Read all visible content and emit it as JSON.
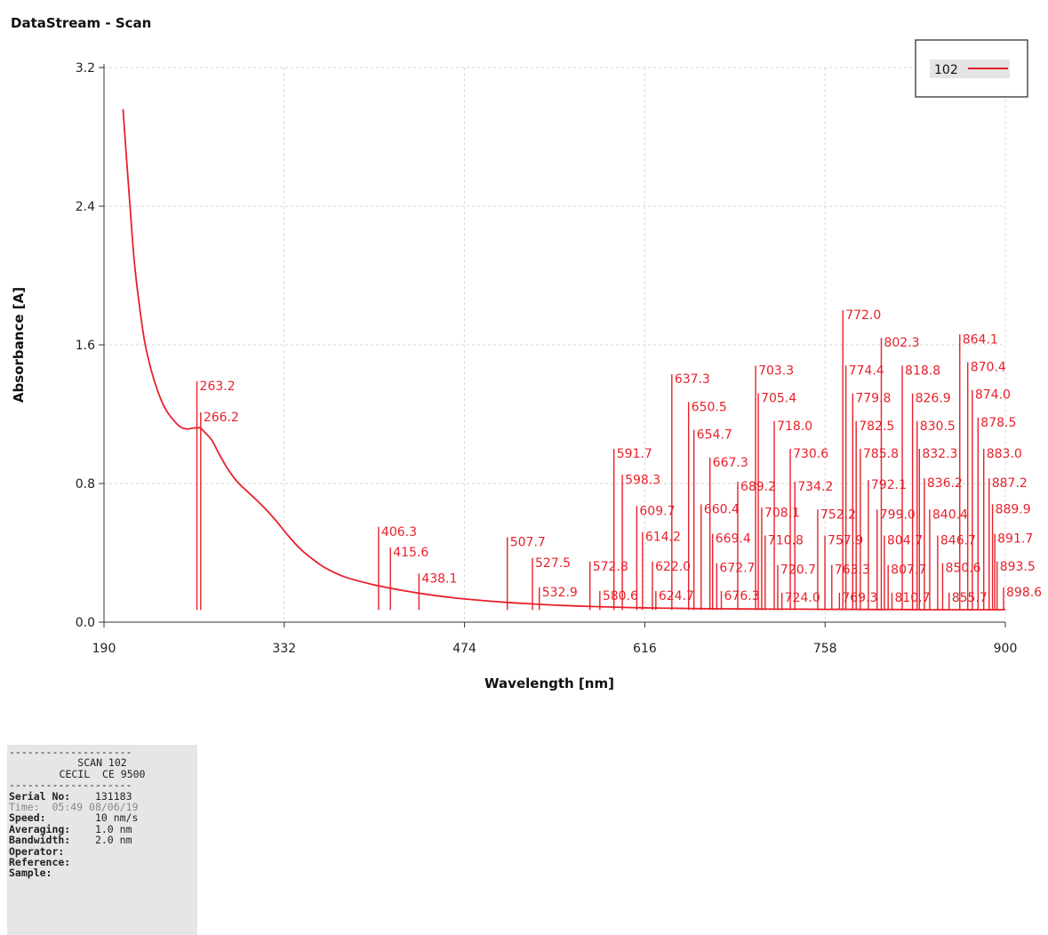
{
  "window": {
    "title": "DataStream - Scan"
  },
  "chart_data": {
    "type": "line",
    "title": "",
    "xlabel": "Wavelength [nm]",
    "ylabel": "Absorbance [A]",
    "xlim": [
      190,
      900
    ],
    "ylim": [
      0.0,
      3.2
    ],
    "xticks": [
      190,
      332,
      474,
      616,
      758,
      900
    ],
    "yticks": [
      0.0,
      0.8,
      1.6,
      2.4,
      3.2
    ],
    "ytick_labels": [
      "0.0",
      "0.8",
      "1.6",
      "2.4",
      "3.2"
    ],
    "grid": true,
    "legend": {
      "position": "top-right",
      "entries": [
        "102"
      ]
    },
    "series": [
      {
        "name": "102",
        "color": "#e8202a",
        "x": [
          205,
          208,
          211,
          214,
          218,
          222,
          227,
          232,
          237,
          242,
          248,
          252,
          255,
          257,
          260,
          263,
          266,
          270,
          275,
          280,
          287,
          295,
          305,
          315,
          325,
          335,
          345,
          355,
          365,
          380,
          400,
          420,
          440,
          460,
          480,
          500,
          520,
          540,
          560,
          580,
          600,
          620,
          640,
          660,
          680,
          700,
          720,
          740,
          760,
          780,
          800,
          820,
          840,
          860,
          880,
          900
        ],
        "y": [
          2.96,
          2.65,
          2.35,
          2.07,
          1.82,
          1.62,
          1.46,
          1.34,
          1.25,
          1.19,
          1.14,
          1.12,
          1.115,
          1.115,
          1.12,
          1.12,
          1.12,
          1.09,
          1.05,
          0.98,
          0.89,
          0.81,
          0.74,
          0.67,
          0.59,
          0.5,
          0.42,
          0.36,
          0.31,
          0.26,
          0.22,
          0.19,
          0.165,
          0.145,
          0.13,
          0.118,
          0.108,
          0.1,
          0.094,
          0.089,
          0.085,
          0.082,
          0.08,
          0.078,
          0.077,
          0.076,
          0.075,
          0.075,
          0.074,
          0.074,
          0.073,
          0.073,
          0.072,
          0.072,
          0.072,
          0.072
        ]
      }
    ],
    "peaks": [
      {
        "label": "263.2",
        "x": 263.2,
        "y": 1.39
      },
      {
        "label": "266.2",
        "x": 266.2,
        "y": 1.21
      },
      {
        "label": "406.3",
        "x": 406.3,
        "y": 0.55
      },
      {
        "label": "415.6",
        "x": 415.6,
        "y": 0.43
      },
      {
        "label": "438.1",
        "x": 438.1,
        "y": 0.28
      },
      {
        "label": "507.7",
        "x": 507.7,
        "y": 0.49
      },
      {
        "label": "527.5",
        "x": 527.5,
        "y": 0.37
      },
      {
        "label": "532.9",
        "x": 532.9,
        "y": 0.2
      },
      {
        "label": "572.8",
        "x": 572.8,
        "y": 0.35
      },
      {
        "label": "580.6",
        "x": 580.6,
        "y": 0.18
      },
      {
        "label": "591.7",
        "x": 591.7,
        "y": 1.0
      },
      {
        "label": "598.3",
        "x": 598.3,
        "y": 0.85
      },
      {
        "label": "609.7",
        "x": 609.7,
        "y": 0.67
      },
      {
        "label": "614.2",
        "x": 614.2,
        "y": 0.52
      },
      {
        "label": "622.0",
        "x": 622.0,
        "y": 0.35
      },
      {
        "label": "624.7",
        "x": 624.7,
        "y": 0.18
      },
      {
        "label": "637.3",
        "x": 637.3,
        "y": 1.43
      },
      {
        "label": "650.5",
        "x": 650.5,
        "y": 1.27
      },
      {
        "label": "654.7",
        "x": 654.7,
        "y": 1.11
      },
      {
        "label": "660.4",
        "x": 660.4,
        "y": 0.68
      },
      {
        "label": "667.3",
        "x": 667.3,
        "y": 0.95
      },
      {
        "label": "669.4",
        "x": 669.4,
        "y": 0.51
      },
      {
        "label": "672.7",
        "x": 672.7,
        "y": 0.34
      },
      {
        "label": "676.3",
        "x": 676.3,
        "y": 0.18
      },
      {
        "label": "689.2",
        "x": 689.2,
        "y": 0.81
      },
      {
        "label": "703.3",
        "x": 703.3,
        "y": 1.48
      },
      {
        "label": "705.4",
        "x": 705.4,
        "y": 1.32
      },
      {
        "label": "708.1",
        "x": 708.1,
        "y": 0.66
      },
      {
        "label": "710.8",
        "x": 710.8,
        "y": 0.5
      },
      {
        "label": "718.0",
        "x": 718.0,
        "y": 1.16
      },
      {
        "label": "720.7",
        "x": 720.7,
        "y": 0.33
      },
      {
        "label": "724.0",
        "x": 724.0,
        "y": 0.17
      },
      {
        "label": "730.6",
        "x": 730.6,
        "y": 1.0
      },
      {
        "label": "734.2",
        "x": 734.2,
        "y": 0.81
      },
      {
        "label": "752.2",
        "x": 752.2,
        "y": 0.65
      },
      {
        "label": "757.9",
        "x": 757.9,
        "y": 0.5
      },
      {
        "label": "763.3",
        "x": 763.3,
        "y": 0.33
      },
      {
        "label": "769.3",
        "x": 769.3,
        "y": 0.17
      },
      {
        "label": "772.0",
        "x": 772.0,
        "y": 1.8
      },
      {
        "label": "774.4",
        "x": 774.4,
        "y": 1.48
      },
      {
        "label": "779.8",
        "x": 779.8,
        "y": 1.32
      },
      {
        "label": "782.5",
        "x": 782.5,
        "y": 1.16
      },
      {
        "label": "785.8",
        "x": 785.8,
        "y": 1.0
      },
      {
        "label": "792.1",
        "x": 792.1,
        "y": 0.82
      },
      {
        "label": "799.0",
        "x": 799.0,
        "y": 0.65
      },
      {
        "label": "802.3",
        "x": 802.3,
        "y": 1.64
      },
      {
        "label": "804.7",
        "x": 804.7,
        "y": 0.5
      },
      {
        "label": "807.7",
        "x": 807.7,
        "y": 0.33
      },
      {
        "label": "810.7",
        "x": 810.7,
        "y": 0.17
      },
      {
        "label": "818.8",
        "x": 818.8,
        "y": 1.48
      },
      {
        "label": "826.9",
        "x": 826.9,
        "y": 1.32
      },
      {
        "label": "830.5",
        "x": 830.5,
        "y": 1.16
      },
      {
        "label": "832.3",
        "x": 832.3,
        "y": 1.0
      },
      {
        "label": "836.2",
        "x": 836.2,
        "y": 0.83
      },
      {
        "label": "840.4",
        "x": 840.4,
        "y": 0.65
      },
      {
        "label": "846.7",
        "x": 846.7,
        "y": 0.5
      },
      {
        "label": "850.6",
        "x": 850.6,
        "y": 0.34
      },
      {
        "label": "855.7",
        "x": 855.7,
        "y": 0.17
      },
      {
        "label": "864.1",
        "x": 864.1,
        "y": 1.66
      },
      {
        "label": "870.4",
        "x": 870.4,
        "y": 1.5
      },
      {
        "label": "874.0",
        "x": 874.0,
        "y": 1.34
      },
      {
        "label": "878.5",
        "x": 878.5,
        "y": 1.18
      },
      {
        "label": "883.0",
        "x": 883.0,
        "y": 1.0
      },
      {
        "label": "887.2",
        "x": 887.2,
        "y": 0.83
      },
      {
        "label": "889.9",
        "x": 889.9,
        "y": 0.68
      },
      {
        "label": "891.7",
        "x": 891.7,
        "y": 0.51
      },
      {
        "label": "893.5",
        "x": 893.5,
        "y": 0.35
      },
      {
        "label": "898.6",
        "x": 898.6,
        "y": 0.2
      }
    ]
  },
  "info_panel": {
    "rule_top": "--------------------",
    "scan_title": "SCAN 102",
    "instrument": "CECIL  CE 9500",
    "rule_bottom": "--------------------",
    "serial_label": "Serial No:",
    "serial_value": "131183",
    "time_label": "Time:",
    "time_value": "05:49 08/06/19",
    "speed_label": "Speed:",
    "speed_value": "10 nm/s",
    "averaging_label": "Averaging:",
    "averaging_value": "1.0 nm",
    "bandwidth_label": "Bandwidth:",
    "bandwidth_value": "2.0 nm",
    "operator_label": "Operator:",
    "reference_label": "Reference:",
    "sample_label": "Sample:"
  }
}
